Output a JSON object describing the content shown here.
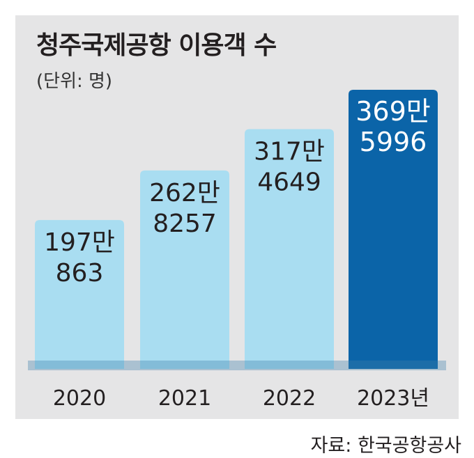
{
  "title": "청주국제공항 이용객 수",
  "subtitle": "(단위: 명)",
  "source": "자료: 한국공항공사",
  "colors": {
    "bar": "#a9ddf1",
    "highlight_bar": "#0b64a8",
    "panel": "#e5e5e6",
    "baseline": "#3d7fa8",
    "label_dark": "#231f20",
    "label_light": "#ffffff"
  },
  "chart_data": {
    "type": "bar",
    "categories": [
      "2020",
      "2021",
      "2022",
      "2023년"
    ],
    "values": [
      1970863,
      2628257,
      3174649,
      3695996
    ],
    "value_labels": [
      [
        "197만",
        "863"
      ],
      [
        "262만",
        "8257"
      ],
      [
        "317만",
        "4649"
      ],
      [
        "369만",
        "5996"
      ]
    ],
    "highlight_index": 3,
    "title": "청주국제공항 이용객 수",
    "ylabel": "(단위: 명)",
    "ylim": [
      0,
      4100000
    ],
    "grid": false,
    "legend": "none"
  }
}
